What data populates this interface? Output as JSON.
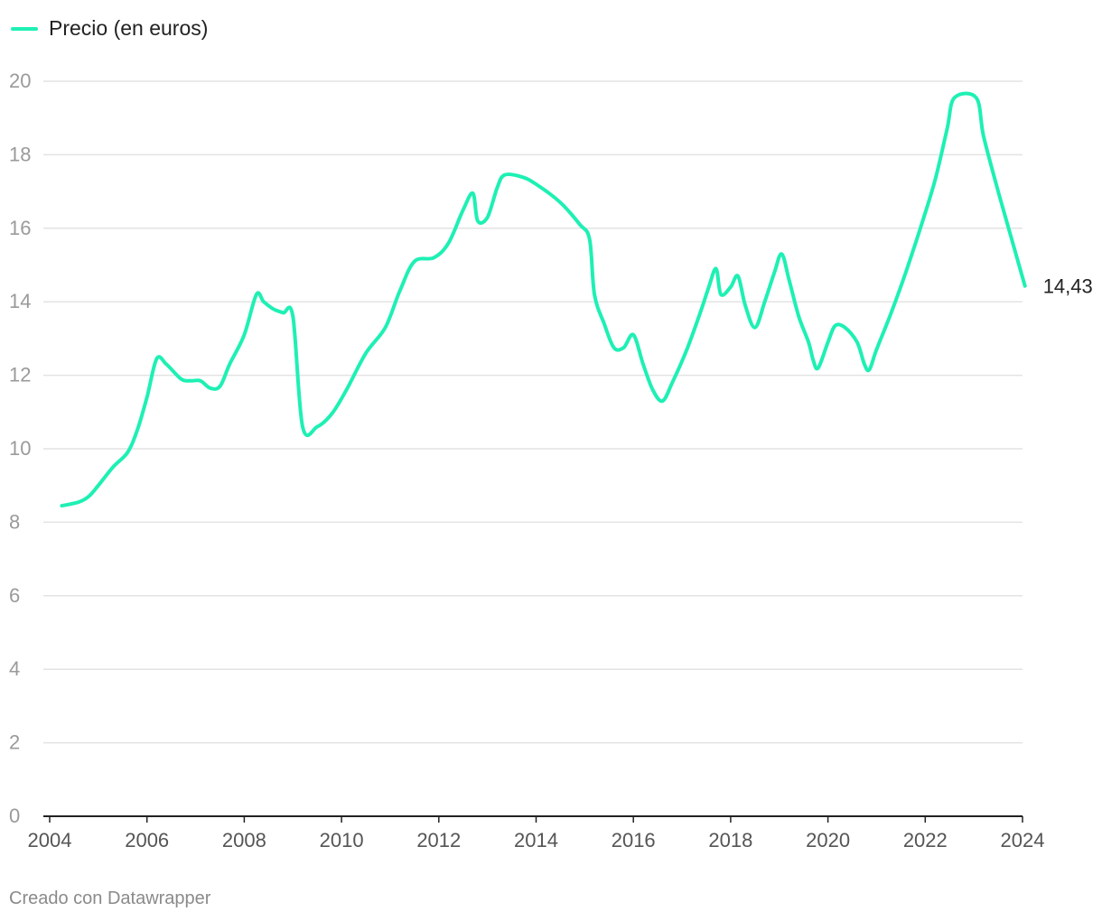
{
  "colors": {
    "line": "#1ef0b4",
    "grid": "#e3e3e3",
    "axis": "#222222",
    "tick_label": "#9a9a9a",
    "x_tick_label": "#555555"
  },
  "legend": {
    "label": "Precio (en euros)"
  },
  "footer": "Creado con Datawrapper",
  "chart_data": {
    "type": "line",
    "series": [
      {
        "name": "Precio (en euros)",
        "end_label": "14,43",
        "points": [
          [
            2004.25,
            8.45
          ],
          [
            2004.6,
            8.55
          ],
          [
            2004.8,
            8.7
          ],
          [
            2005.0,
            9.0
          ],
          [
            2005.3,
            9.5
          ],
          [
            2005.6,
            9.9
          ],
          [
            2005.8,
            10.5
          ],
          [
            2006.0,
            11.4
          ],
          [
            2006.2,
            12.45
          ],
          [
            2006.4,
            12.3
          ],
          [
            2006.7,
            11.9
          ],
          [
            2006.9,
            11.85
          ],
          [
            2007.1,
            11.85
          ],
          [
            2007.3,
            11.65
          ],
          [
            2007.5,
            11.7
          ],
          [
            2007.7,
            12.3
          ],
          [
            2008.0,
            13.1
          ],
          [
            2008.25,
            14.2
          ],
          [
            2008.4,
            14.0
          ],
          [
            2008.6,
            13.8
          ],
          [
            2008.8,
            13.7
          ],
          [
            2009.0,
            13.6
          ],
          [
            2009.2,
            10.6
          ],
          [
            2009.5,
            10.6
          ],
          [
            2009.8,
            10.95
          ],
          [
            2010.1,
            11.6
          ],
          [
            2010.5,
            12.6
          ],
          [
            2010.9,
            13.3
          ],
          [
            2011.2,
            14.3
          ],
          [
            2011.5,
            15.1
          ],
          [
            2011.9,
            15.2
          ],
          [
            2012.2,
            15.6
          ],
          [
            2012.5,
            16.5
          ],
          [
            2012.7,
            16.95
          ],
          [
            2012.8,
            16.2
          ],
          [
            2013.0,
            16.3
          ],
          [
            2013.2,
            17.1
          ],
          [
            2013.35,
            17.45
          ],
          [
            2013.7,
            17.4
          ],
          [
            2014.0,
            17.2
          ],
          [
            2014.5,
            16.7
          ],
          [
            2014.9,
            16.1
          ],
          [
            2015.1,
            15.7
          ],
          [
            2015.2,
            14.2
          ],
          [
            2015.4,
            13.4
          ],
          [
            2015.6,
            12.75
          ],
          [
            2015.8,
            12.75
          ],
          [
            2016.0,
            13.1
          ],
          [
            2016.2,
            12.3
          ],
          [
            2016.4,
            11.6
          ],
          [
            2016.6,
            11.3
          ],
          [
            2016.8,
            11.8
          ],
          [
            2017.1,
            12.7
          ],
          [
            2017.4,
            13.8
          ],
          [
            2017.55,
            14.4
          ],
          [
            2017.7,
            14.9
          ],
          [
            2017.8,
            14.2
          ],
          [
            2018.0,
            14.4
          ],
          [
            2018.15,
            14.7
          ],
          [
            2018.3,
            13.9
          ],
          [
            2018.5,
            13.3
          ],
          [
            2018.7,
            14.0
          ],
          [
            2018.9,
            14.8
          ],
          [
            2019.05,
            15.3
          ],
          [
            2019.2,
            14.6
          ],
          [
            2019.4,
            13.6
          ],
          [
            2019.6,
            12.9
          ],
          [
            2019.7,
            12.4
          ],
          [
            2019.8,
            12.2
          ],
          [
            2020.0,
            12.9
          ],
          [
            2020.15,
            13.35
          ],
          [
            2020.35,
            13.3
          ],
          [
            2020.6,
            12.9
          ],
          [
            2020.75,
            12.3
          ],
          [
            2020.85,
            12.15
          ],
          [
            2021.0,
            12.7
          ],
          [
            2021.3,
            13.7
          ],
          [
            2021.6,
            14.8
          ],
          [
            2021.9,
            16.0
          ],
          [
            2022.2,
            17.3
          ],
          [
            2022.45,
            18.7
          ],
          [
            2022.6,
            19.55
          ],
          [
            2023.05,
            19.55
          ],
          [
            2023.2,
            18.5
          ],
          [
            2023.5,
            17.0
          ],
          [
            2023.8,
            15.6
          ],
          [
            2024.05,
            14.43
          ]
        ]
      }
    ],
    "xlim": [
      2004,
      2024
    ],
    "ylim": [
      0,
      20
    ],
    "x_ticks": [
      "2004",
      "2006",
      "2008",
      "2010",
      "2012",
      "2014",
      "2016",
      "2018",
      "2020",
      "2022",
      "2024"
    ],
    "y_ticks": [
      "0",
      "2",
      "4",
      "6",
      "8",
      "10",
      "12",
      "14",
      "16",
      "18",
      "20"
    ],
    "grid": true,
    "legend_position": "top-left"
  }
}
